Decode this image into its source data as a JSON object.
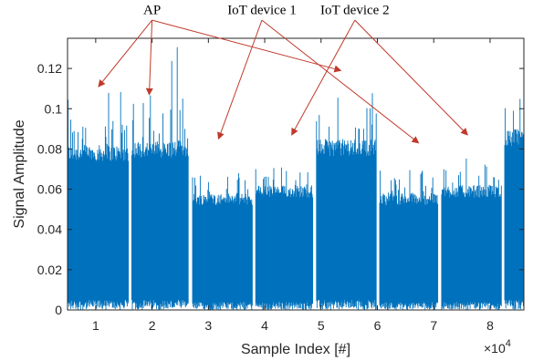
{
  "chart_data": {
    "type": "area",
    "title": "",
    "xlabel": "Sample Index [#]",
    "ylabel": "Signal Amplitude",
    "x_exponent_label": "×10",
    "x_exponent_power": "4",
    "xlim": [
      0.5,
      8.6
    ],
    "ylim": [
      0,
      0.135
    ],
    "xticks": [
      1,
      2,
      3,
      4,
      5,
      6,
      7,
      8
    ],
    "xtick_labels": [
      "1",
      "2",
      "3",
      "4",
      "5",
      "6",
      "7",
      "8"
    ],
    "yticks": [
      0,
      0.02,
      0.04,
      0.06,
      0.08,
      0.1,
      0.12
    ],
    "ytick_labels": [
      "0",
      "0.02",
      "0.04",
      "0.06",
      "0.08",
      "0.1",
      "0.12"
    ],
    "grid": false,
    "series_color": "#0072BD",
    "segments": [
      {
        "x_start": 0.5,
        "x_end": 1.58,
        "dense_top": 0.082,
        "peak": 0.115,
        "floor": 0.005,
        "who": "AP"
      },
      {
        "x_start": 1.64,
        "x_end": 2.65,
        "dense_top": 0.084,
        "peak": 0.136,
        "floor": 0.005,
        "who": "AP"
      },
      {
        "x_start": 2.72,
        "x_end": 3.78,
        "dense_top": 0.058,
        "peak": 0.081,
        "floor": 0.004,
        "who": "IoT device 1"
      },
      {
        "x_start": 3.84,
        "x_end": 4.86,
        "dense_top": 0.062,
        "peak": 0.083,
        "floor": 0.004,
        "who": "IoT device 2"
      },
      {
        "x_start": 4.92,
        "x_end": 5.98,
        "dense_top": 0.085,
        "peak": 0.121,
        "floor": 0.005,
        "who": "AP"
      },
      {
        "x_start": 6.04,
        "x_end": 7.08,
        "dense_top": 0.058,
        "peak": 0.085,
        "floor": 0.004,
        "who": "IoT device 1"
      },
      {
        "x_start": 7.14,
        "x_end": 8.2,
        "dense_top": 0.062,
        "peak": 0.087,
        "floor": 0.004,
        "who": "IoT device 2"
      },
      {
        "x_start": 8.26,
        "x_end": 8.6,
        "dense_top": 0.09,
        "peak": 0.124,
        "floor": 0.005,
        "who": "AP"
      }
    ],
    "annotations": [
      {
        "label": "AP",
        "text_x": 2.0,
        "text_y": 0.147,
        "arrow_starts": [
          [
            2.0,
            0.144
          ],
          [
            2.0,
            0.144
          ],
          [
            2.0,
            0.144
          ]
        ],
        "arrow_ends": [
          [
            1.05,
            0.111
          ],
          [
            1.95,
            0.107
          ],
          [
            5.35,
            0.119
          ]
        ]
      },
      {
        "label": "IoT device 1",
        "text_x": 3.95,
        "text_y": 0.147,
        "arrow_starts": [
          [
            3.95,
            0.144
          ],
          [
            3.95,
            0.144
          ]
        ],
        "arrow_ends": [
          [
            3.18,
            0.085
          ],
          [
            6.73,
            0.083
          ]
        ]
      },
      {
        "label": "IoT device 2",
        "text_x": 5.6,
        "text_y": 0.147,
        "arrow_starts": [
          [
            5.6,
            0.144
          ],
          [
            5.6,
            0.144
          ]
        ],
        "arrow_ends": [
          [
            4.48,
            0.087
          ],
          [
            7.6,
            0.087
          ]
        ]
      }
    ]
  }
}
